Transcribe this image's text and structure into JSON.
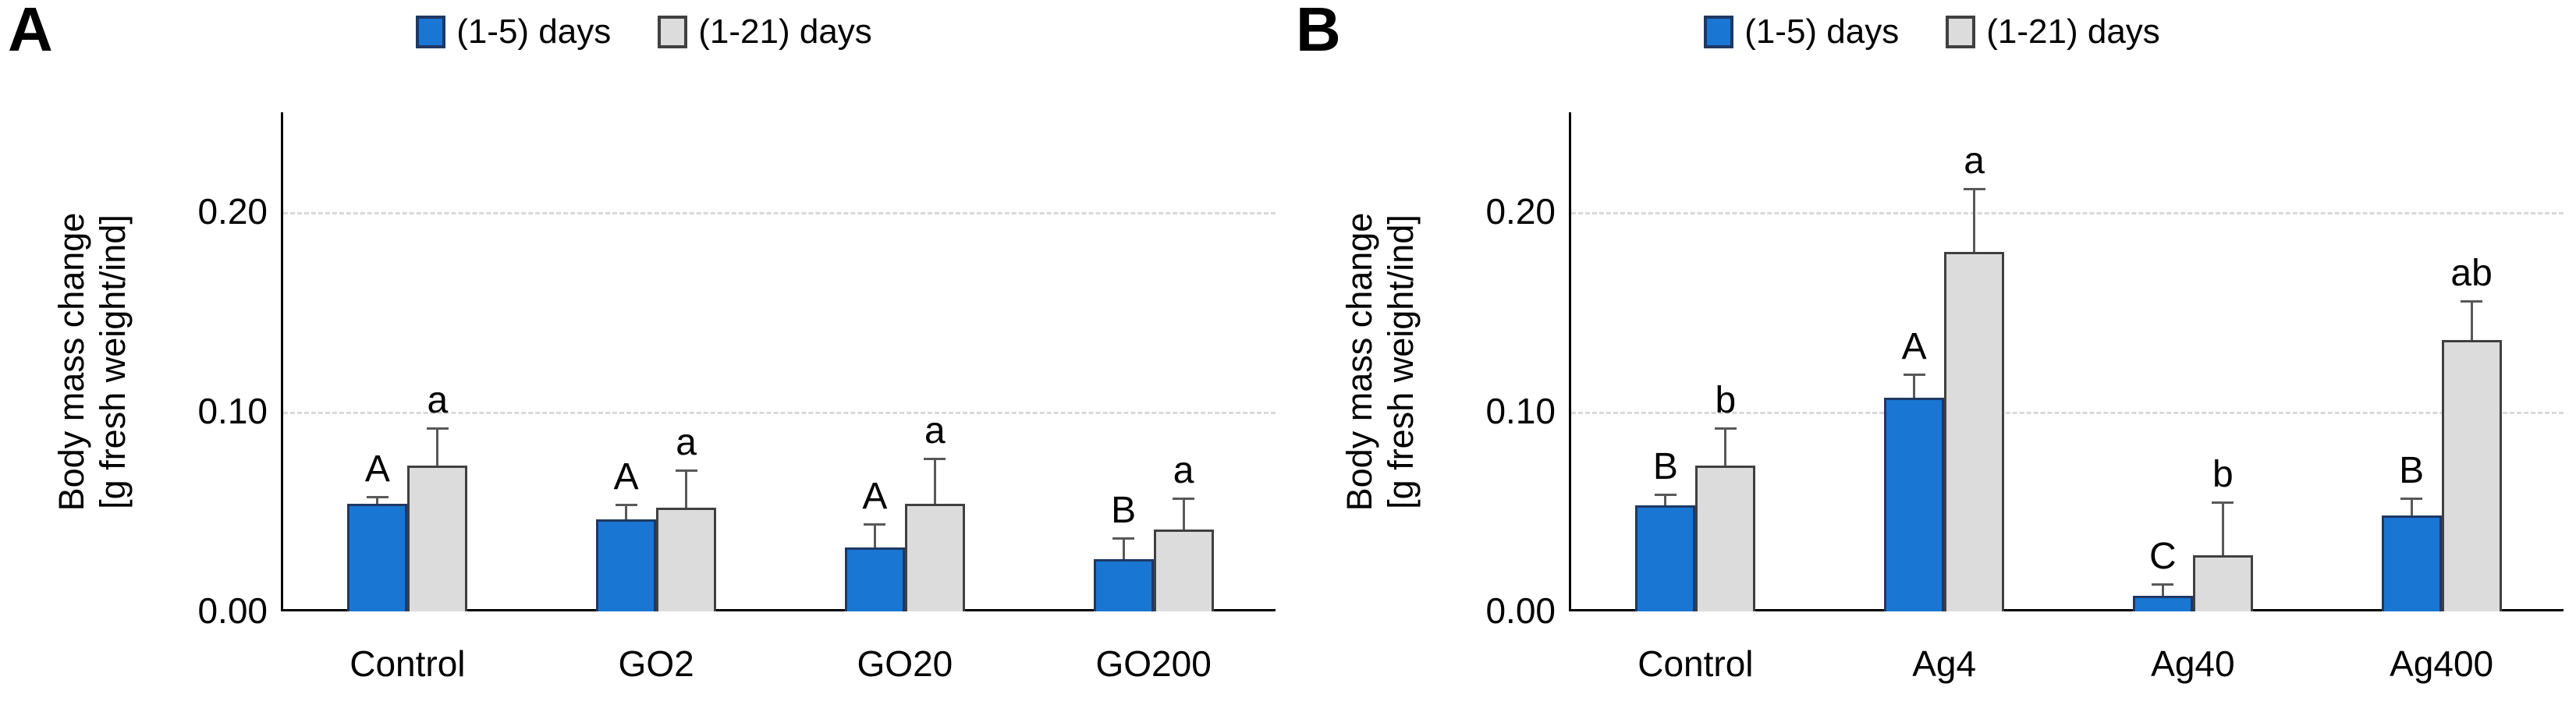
{
  "chart_data": [
    {
      "type": "bar",
      "panel_label": "A",
      "title": "",
      "ylabel_line1": "Body mass change",
      "ylabel_line2": "[g fresh weight/ind]",
      "categories": [
        "Control",
        "GO2",
        "GO20",
        "GO200"
      ],
      "series": [
        {
          "name": "(1-5) days",
          "color": "#1976D2",
          "border_color": "#1F3864",
          "values": [
            0.054,
            0.046,
            0.032,
            0.026
          ],
          "errors_up": [
            0.004,
            0.008,
            0.012,
            0.011
          ],
          "letters": [
            "A",
            "A",
            "A",
            "B"
          ]
        },
        {
          "name": "(1-21) days",
          "color": "#DCDCDC",
          "border_color": "#404040",
          "values": [
            0.073,
            0.052,
            0.054,
            0.041
          ],
          "errors_up": [
            0.019,
            0.019,
            0.023,
            0.016
          ],
          "letters": [
            "a",
            "a",
            "a",
            "a"
          ]
        }
      ],
      "yticks": [
        {
          "label": "0.00",
          "value": 0.0
        },
        {
          "label": "0.10",
          "value": 0.1
        },
        {
          "label": "0.20",
          "value": 0.2
        }
      ],
      "ylim": [
        0,
        0.25
      ],
      "gridlines": [
        0.1,
        0.2
      ],
      "grid_on": true,
      "legend_position": "top-center",
      "grid_color": "#d9d9d9",
      "axis_color": "#000000",
      "error_bar_color": "#595959"
    },
    {
      "type": "bar",
      "panel_label": "B",
      "title": "",
      "ylabel_line1": "Body mass change",
      "ylabel_line2": "[g fresh weight/ind]",
      "categories": [
        "Control",
        "Ag4",
        "Ag40",
        "Ag400"
      ],
      "series": [
        {
          "name": "(1-5) days",
          "color": "#1976D2",
          "border_color": "#1F3864",
          "values": [
            0.053,
            0.107,
            0.008,
            0.048
          ],
          "errors_up": [
            0.006,
            0.012,
            0.006,
            0.009
          ],
          "letters": [
            "B",
            "A",
            "C",
            "B"
          ]
        },
        {
          "name": "(1-21) days",
          "color": "#DCDCDC",
          "border_color": "#404040",
          "values": [
            0.073,
            0.18,
            0.028,
            0.136
          ],
          "errors_up": [
            0.019,
            0.032,
            0.027,
            0.02
          ],
          "letters": [
            "b",
            "a",
            "b",
            "ab"
          ]
        }
      ],
      "yticks": [
        {
          "label": "0.00",
          "value": 0.0
        },
        {
          "label": "0.10",
          "value": 0.1
        },
        {
          "label": "0.20",
          "value": 0.2
        }
      ],
      "ylim": [
        0,
        0.25
      ],
      "gridlines": [
        0.1,
        0.2
      ],
      "grid_on": true,
      "legend_position": "top-center",
      "grid_color": "#d9d9d9",
      "axis_color": "#000000",
      "error_bar_color": "#595959"
    }
  ]
}
